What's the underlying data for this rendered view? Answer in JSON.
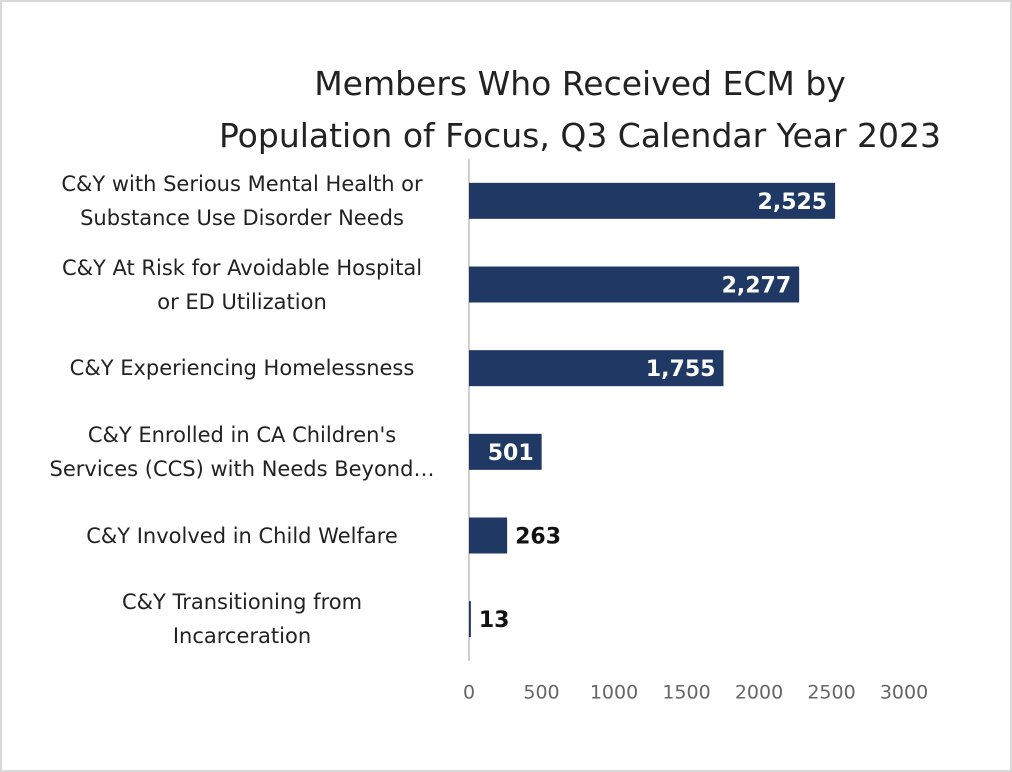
{
  "chart_data": {
    "type": "bar",
    "orientation": "horizontal",
    "title": "Members Who Received ECM by\nPopulation of Focus, Q3 Calendar Year 2023",
    "categories": [
      "C&Y with Serious Mental Health or\nSubstance Use Disorder Needs",
      "C&Y At Risk for Avoidable Hospital\nor ED Utilization",
      "C&Y Experiencing Homelessness",
      "C&Y Enrolled in CA Children's\nServices (CCS) with Needs Beyond…",
      "C&Y Involved in Child Welfare",
      "C&Y Transitioning from\nIncarceration"
    ],
    "values": [
      2525,
      2277,
      1755,
      501,
      263,
      13
    ],
    "value_labels": [
      "2,525",
      "2,277",
      "1,755",
      "501",
      "263",
      "13"
    ],
    "color": "#203864",
    "xlim": [
      0,
      3000
    ],
    "xticks": [
      0,
      500,
      1000,
      1500,
      2000,
      2500,
      3000
    ],
    "grid": false
  }
}
